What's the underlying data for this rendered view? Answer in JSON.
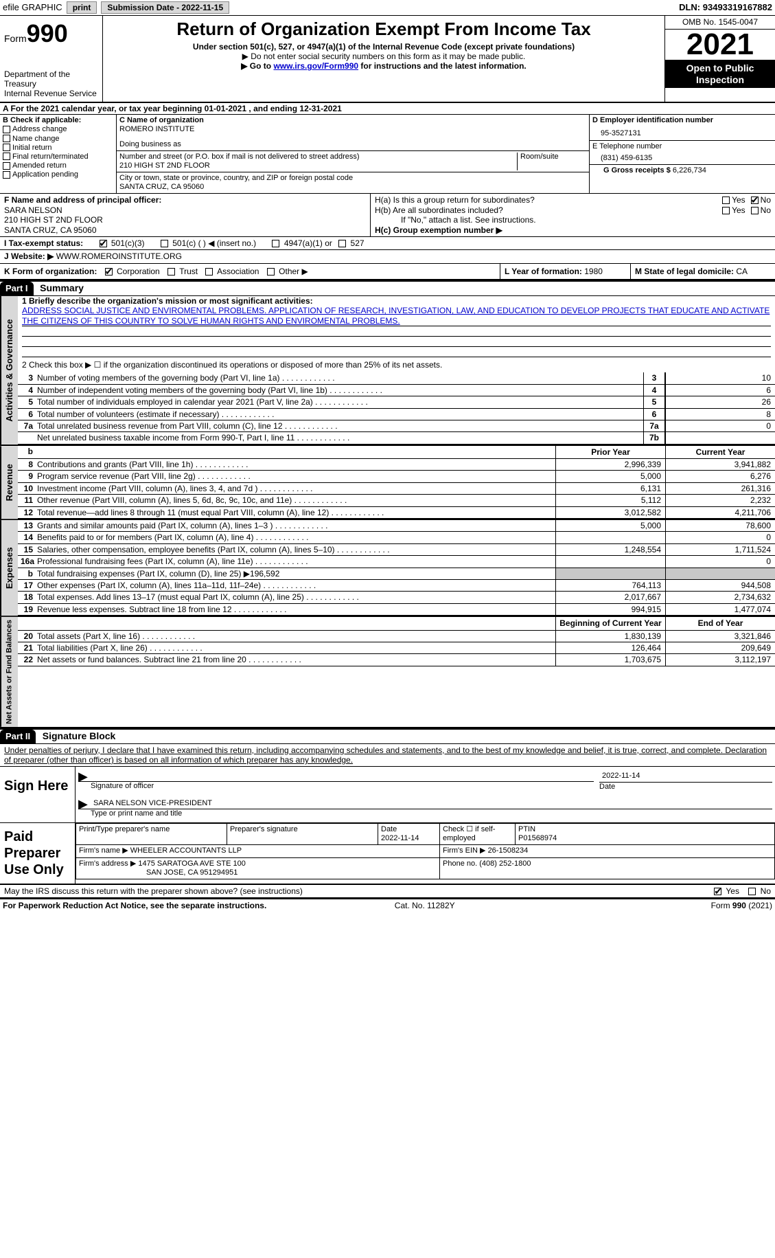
{
  "topbar": {
    "efile": "efile GRAPHIC",
    "print": "print",
    "sub_label": "Submission Date - ",
    "sub_date": "2022-11-15",
    "dln_label": "DLN: ",
    "dln": "93493319167882"
  },
  "header": {
    "form_word": "Form",
    "form_num": "990",
    "dept": "Department of the Treasury\nInternal Revenue Service",
    "title": "Return of Organization Exempt From Income Tax",
    "sub1": "Under section 501(c), 527, or 4947(a)(1) of the Internal Revenue Code (except private foundations)",
    "sub2": "▶ Do not enter social security numbers on this form as it may be made public.",
    "sub3_pre": "▶ Go to ",
    "sub3_link": "www.irs.gov/Form990",
    "sub3_post": " for instructions and the latest information.",
    "omb": "OMB No. 1545-0047",
    "year": "2021",
    "inspect": "Open to Public Inspection"
  },
  "lineA": {
    "text_pre": "A For the 2021 calendar year, or tax year beginning ",
    "begin": "01-01-2021",
    "text_mid": "   , and ending ",
    "end": "12-31-2021"
  },
  "B": {
    "title": "B Check if applicable:",
    "items": [
      "Address change",
      "Name change",
      "Initial return",
      "Final return/terminated",
      "Amended return",
      "Application pending"
    ]
  },
  "C": {
    "name_label": "C Name of organization",
    "name": "ROMERO INSTITUTE",
    "dba_label": "Doing business as",
    "addr_label": "Number and street (or P.O. box if mail is not delivered to street address)",
    "room_label": "Room/suite",
    "addr": "210 HIGH ST 2ND FLOOR",
    "city_label": "City or town, state or province, country, and ZIP or foreign postal code",
    "city": "SANTA CRUZ, CA  95060"
  },
  "D": {
    "label": "D Employer identification number",
    "val": "95-3527131"
  },
  "E": {
    "label": "E Telephone number",
    "val": "(831) 459-6135"
  },
  "G": {
    "label": "G Gross receipts $ ",
    "val": "6,226,734"
  },
  "F": {
    "label": "F  Name and address of principal officer:",
    "name": "SARA NELSON",
    "addr1": "210 HIGH ST 2ND FLOOR",
    "addr2": "SANTA CRUZ, CA  95060"
  },
  "H": {
    "a": "H(a)  Is this a group return for subordinates?",
    "b": "H(b)  Are all subordinates included?",
    "b_note": "If \"No,\" attach a list. See instructions.",
    "c": "H(c)  Group exemption number ▶",
    "yes": "Yes",
    "no": "No"
  },
  "I": {
    "label": "I    Tax-exempt status:",
    "o1": "501(c)(3)",
    "o2": "501(c) (  ) ◀ (insert no.)",
    "o3": "4947(a)(1) or",
    "o4": "527"
  },
  "J": {
    "label": "J    Website: ▶  ",
    "val": "WWW.ROMEROINSTITUTE.ORG"
  },
  "K": {
    "label": "K Form of organization:",
    "o": [
      "Corporation",
      "Trust",
      "Association",
      "Other ▶"
    ]
  },
  "L": {
    "label": "L Year of formation: ",
    "val": "1980"
  },
  "M": {
    "label": "M State of legal domicile: ",
    "val": "CA"
  },
  "part1": {
    "label": "Part I",
    "title": "Summary"
  },
  "mission": {
    "l1": "1   Briefly describe the organization's mission or most significant activities:",
    "text": "ADDRESS SOCIAL JUSTICE AND ENVIROMENTAL PROBLEMS. APPLICATION OF RESEARCH, INVESTIGATION, LAW, AND EDUCATION TO DEVELOP PROJECTS THAT EDUCATE AND ACTIVATE THE CITIZENS OF THIS COUNTRY TO SOLVE HUMAN RIGHTS AND ENVIROMENTAL PROBLEMS."
  },
  "line2": "2   Check this box ▶ ☐  if the organization discontinued its operations or disposed of more than 25% of its net assets.",
  "gov_rows": [
    {
      "n": "3",
      "d": "Number of voting members of the governing body (Part VI, line 1a)",
      "box": "3",
      "v": "10"
    },
    {
      "n": "4",
      "d": "Number of independent voting members of the governing body (Part VI, line 1b)",
      "box": "4",
      "v": "6"
    },
    {
      "n": "5",
      "d": "Total number of individuals employed in calendar year 2021 (Part V, line 2a)",
      "box": "5",
      "v": "26"
    },
    {
      "n": "6",
      "d": "Total number of volunteers (estimate if necessary)",
      "box": "6",
      "v": "8"
    },
    {
      "n": "7a",
      "d": "Total unrelated business revenue from Part VIII, column (C), line 12",
      "box": "7a",
      "v": "0"
    },
    {
      "n": "",
      "d": "Net unrelated business taxable income from Form 990-T, Part I, line 11",
      "box": "7b",
      "v": ""
    }
  ],
  "col_hdr": {
    "b": "b",
    "prior": "Prior Year",
    "current": "Current Year"
  },
  "rev_rows": [
    {
      "n": "8",
      "d": "Contributions and grants (Part VIII, line 1h)",
      "p": "2,996,339",
      "c": "3,941,882"
    },
    {
      "n": "9",
      "d": "Program service revenue (Part VIII, line 2g)",
      "p": "5,000",
      "c": "6,276"
    },
    {
      "n": "10",
      "d": "Investment income (Part VIII, column (A), lines 3, 4, and 7d )",
      "p": "6,131",
      "c": "261,316"
    },
    {
      "n": "11",
      "d": "Other revenue (Part VIII, column (A), lines 5, 6d, 8c, 9c, 10c, and 11e)",
      "p": "5,112",
      "c": "2,232"
    },
    {
      "n": "12",
      "d": "Total revenue—add lines 8 through 11 (must equal Part VIII, column (A), line 12)",
      "p": "3,012,582",
      "c": "4,211,706"
    }
  ],
  "exp_rows": [
    {
      "n": "13",
      "d": "Grants and similar amounts paid (Part IX, column (A), lines 1–3 )",
      "p": "5,000",
      "c": "78,600"
    },
    {
      "n": "14",
      "d": "Benefits paid to or for members (Part IX, column (A), line 4)",
      "p": "",
      "c": "0"
    },
    {
      "n": "15",
      "d": "Salaries, other compensation, employee benefits (Part IX, column (A), lines 5–10)",
      "p": "1,248,554",
      "c": "1,711,524"
    },
    {
      "n": "16a",
      "d": "Professional fundraising fees (Part IX, column (A), line 11e)",
      "p": "",
      "c": "0"
    },
    {
      "n": "b",
      "d": "Total fundraising expenses (Part IX, column (D), line 25) ▶196,592",
      "p": "shade",
      "c": "shade"
    },
    {
      "n": "17",
      "d": "Other expenses (Part IX, column (A), lines 11a–11d, 11f–24e)",
      "p": "764,113",
      "c": "944,508"
    },
    {
      "n": "18",
      "d": "Total expenses. Add lines 13–17 (must equal Part IX, column (A), line 25)",
      "p": "2,017,667",
      "c": "2,734,632"
    },
    {
      "n": "19",
      "d": "Revenue less expenses. Subtract line 18 from line 12",
      "p": "994,915",
      "c": "1,477,074"
    }
  ],
  "na_hdr": {
    "prior": "Beginning of Current Year",
    "current": "End of Year"
  },
  "na_rows": [
    {
      "n": "20",
      "d": "Total assets (Part X, line 16)",
      "p": "1,830,139",
      "c": "3,321,846"
    },
    {
      "n": "21",
      "d": "Total liabilities (Part X, line 26)",
      "p": "126,464",
      "c": "209,649"
    },
    {
      "n": "22",
      "d": "Net assets or fund balances. Subtract line 21 from line 20",
      "p": "1,703,675",
      "c": "3,112,197"
    }
  ],
  "part2": {
    "label": "Part II",
    "title": "Signature Block"
  },
  "perjury": "Under penalties of perjury, I declare that I have examined this return, including accompanying schedules and statements, and to the best of my knowledge and belief, it is true, correct, and complete. Declaration of preparer (other than officer) is based on all information of which preparer has any knowledge.",
  "sign": {
    "here": "Sign Here",
    "sig_label": "Signature of officer",
    "date_label": "Date",
    "date": "2022-11-14",
    "name": "SARA NELSON  VICE-PRESIDENT",
    "name_label": "Type or print name and title"
  },
  "paid": {
    "title": "Paid Preparer Use Only",
    "h1": "Print/Type preparer's name",
    "h2": "Preparer's signature",
    "h3_l": "Date",
    "h3": "2022-11-14",
    "h4": "Check ☐ if self-employed",
    "h5_l": "PTIN",
    "h5": "P01568974",
    "firm_l": "Firm's name    ▶ ",
    "firm": "WHEELER ACCOUNTANTS LLP",
    "ein_l": "Firm's EIN ▶ ",
    "ein": "26-1508234",
    "addr_l": "Firm's address ▶ ",
    "addr1": "1475 SARATOGA AVE STE 100",
    "addr2": "SAN JOSE, CA  951294951",
    "phone_l": "Phone no. ",
    "phone": "(408) 252-1800"
  },
  "discuss": "May the IRS discuss this return with the preparer shown above? (see instructions)",
  "footer": {
    "l": "For Paperwork Reduction Act Notice, see the separate instructions.",
    "m": "Cat. No. 11282Y",
    "r": "Form 990 (2021)"
  },
  "vtabs": {
    "gov": "Activities & Governance",
    "rev": "Revenue",
    "exp": "Expenses",
    "na": "Net Assets or Fund Balances"
  },
  "colors": {
    "link": "#0000cc",
    "shade": "#c8c8c8",
    "black": "#000000"
  }
}
